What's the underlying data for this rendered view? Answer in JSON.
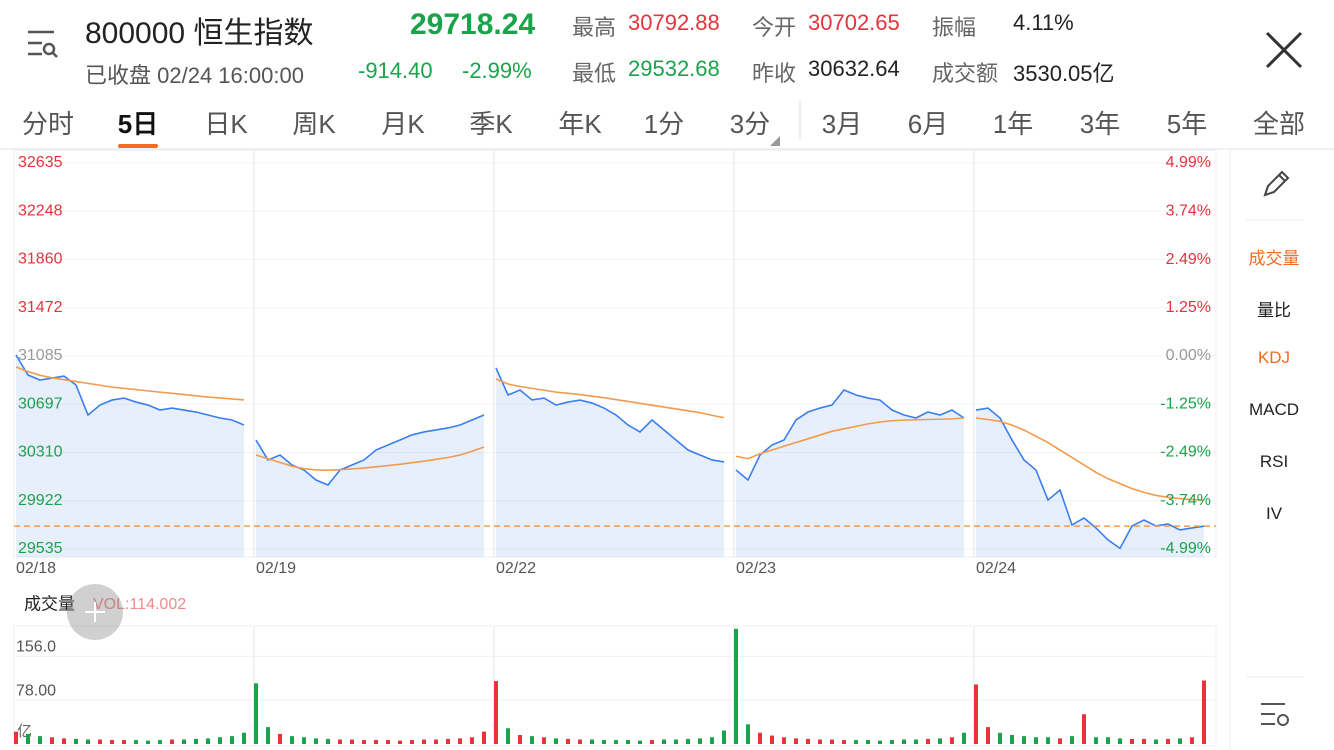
{
  "header": {
    "code": "800000",
    "name": "恒生指数",
    "price": "29718.24",
    "status": "已收盘",
    "datetime": "02/24 16:00:00",
    "change": "-914.40",
    "change_pct": "-2.99%",
    "stats": [
      {
        "label": "最高",
        "value": "30792.88",
        "color": "#e8323c"
      },
      {
        "label": "今开",
        "value": "30702.65",
        "color": "#e8323c"
      },
      {
        "label": "振幅",
        "value": "4.11%",
        "color": "#222222"
      },
      {
        "label": "最低",
        "value": "29532.68",
        "color": "#19a34a"
      },
      {
        "label": "昨收",
        "value": "30632.64",
        "color": "#222222"
      },
      {
        "label": "成交额",
        "value": "3530.05亿",
        "color": "#222222"
      }
    ]
  },
  "tabs": {
    "items": [
      "分时",
      "5日",
      "日K",
      "周K",
      "月K",
      "季K",
      "年K",
      "1分",
      "3分",
      "3月",
      "6月",
      "1年",
      "3年",
      "5年",
      "全部"
    ],
    "active": 1
  },
  "side_menu": {
    "items": [
      "成交量",
      "量比",
      "KDJ",
      "MACD",
      "RSI",
      "IV"
    ],
    "highlighted": [
      0,
      2
    ]
  },
  "chart": {
    "type": "line",
    "ylim": [
      29535,
      32635
    ],
    "yticks": [
      32635,
      32248,
      31860,
      31472,
      31085,
      30697,
      30310,
      29922,
      29535
    ],
    "y2lim": [
      -4.99,
      4.99
    ],
    "y2ticks": [
      {
        "value": 4.99,
        "label": "4.99%"
      },
      {
        "value": 3.74,
        "label": "3.74%"
      },
      {
        "value": 2.49,
        "label": "2.49%"
      },
      {
        "value": 1.25,
        "label": "1.25%"
      },
      {
        "value": 0,
        "label": "0.00%"
      },
      {
        "value": -1.25,
        "label": "-1.25%"
      },
      {
        "value": -2.49,
        "label": "-2.49%"
      },
      {
        "value": -3.74,
        "label": "-3.74%"
      },
      {
        "value": -4.99,
        "label": "-4.99%"
      }
    ],
    "price_color": "#3a7ff0",
    "avg_color": "#f39a4c",
    "up_color": "#e8323c",
    "down_color": "#19a34a",
    "last_price": 29718.24,
    "days": [
      {
        "date": "02/18",
        "price": [
          31093,
          30932,
          30892,
          30908,
          30924,
          30852,
          30611,
          30691,
          30731,
          30747,
          30715,
          30691,
          30651,
          30667,
          30651,
          30635,
          30611,
          30587,
          30571,
          30531
        ],
        "avg": [
          30997,
          30960,
          30930,
          30910,
          30895,
          30880,
          30865,
          30850,
          30835,
          30825,
          30815,
          30805,
          30795,
          30785,
          30775,
          30765,
          30755,
          30748,
          30740,
          30732
        ],
        "volume": [
          22,
          18,
          14,
          12,
          10,
          9,
          8,
          8,
          7,
          7,
          7,
          6,
          7,
          8,
          8,
          9,
          10,
          12,
          14,
          20
        ]
      },
      {
        "date": "02/19",
        "price": [
          30410,
          30250,
          30290,
          30210,
          30169,
          30089,
          30049,
          30169,
          30210,
          30250,
          30330,
          30370,
          30410,
          30451,
          30475,
          30491,
          30507,
          30531,
          30571,
          30611
        ],
        "avg": [
          30290,
          30260,
          30230,
          30200,
          30180,
          30170,
          30168,
          30172,
          30178,
          30185,
          30195,
          30205,
          30215,
          30228,
          30240,
          30255,
          30270,
          30290,
          30320,
          30354
        ],
        "volume": [
          108,
          30,
          18,
          14,
          12,
          10,
          9,
          8,
          8,
          7,
          7,
          7,
          6,
          7,
          8,
          8,
          9,
          10,
          12,
          22
        ]
      },
      {
        "date": "02/22",
        "price": [
          30989,
          30772,
          30812,
          30732,
          30747,
          30691,
          30715,
          30731,
          30707,
          30667,
          30611,
          30531,
          30475,
          30571,
          30491,
          30410,
          30330,
          30290,
          30250,
          30234
        ],
        "avg": [
          30900,
          30860,
          30840,
          30825,
          30810,
          30795,
          30785,
          30775,
          30762,
          30750,
          30735,
          30720,
          30705,
          30690,
          30675,
          30660,
          30645,
          30630,
          30608,
          30590
        ],
        "volume": [
          112,
          28,
          16,
          14,
          12,
          10,
          9,
          8,
          8,
          7,
          7,
          7,
          6,
          7,
          8,
          8,
          9,
          10,
          12,
          24
        ]
      },
      {
        "date": "02/23",
        "price": [
          30170,
          30089,
          30290,
          30370,
          30410,
          30571,
          30635,
          30667,
          30691,
          30812,
          30772,
          30747,
          30731,
          30651,
          30611,
          30587,
          30635,
          30611,
          30651,
          30587
        ],
        "avg": [
          30280,
          30260,
          30300,
          30330,
          30360,
          30390,
          30420,
          30450,
          30480,
          30500,
          30520,
          30540,
          30555,
          30565,
          30570,
          30573,
          30575,
          30577,
          30580,
          30587
        ],
        "volume": [
          205,
          35,
          20,
          15,
          12,
          10,
          9,
          8,
          8,
          7,
          7,
          7,
          6,
          7,
          8,
          8,
          9,
          10,
          12,
          20
        ]
      },
      {
        "date": "02/24",
        "price": [
          30651,
          30667,
          30587,
          30410,
          30250,
          30169,
          29928,
          30009,
          29728,
          29784,
          29704,
          29608,
          29540,
          29720,
          29768,
          29720,
          29736,
          29688,
          29704,
          29718
        ],
        "avg": [
          30587,
          30575,
          30560,
          30530,
          30490,
          30440,
          30390,
          30330,
          30270,
          30210,
          30150,
          30100,
          30060,
          30020,
          29990,
          29965,
          29950,
          29940,
          29932,
          29928
        ],
        "volume": [
          106,
          30,
          20,
          16,
          14,
          12,
          12,
          10,
          14,
          53,
          12,
          12,
          10,
          9,
          9,
          8,
          9,
          10,
          12,
          113
        ]
      }
    ]
  },
  "volume_chart": {
    "label": "成交量",
    "indicator": "VOL:114.002",
    "unit": "亿",
    "ylim": [
      0,
      210
    ],
    "yticks": [
      {
        "value": 156,
        "label": "156.0"
      },
      {
        "value": 78,
        "label": "78.00"
      }
    ]
  }
}
